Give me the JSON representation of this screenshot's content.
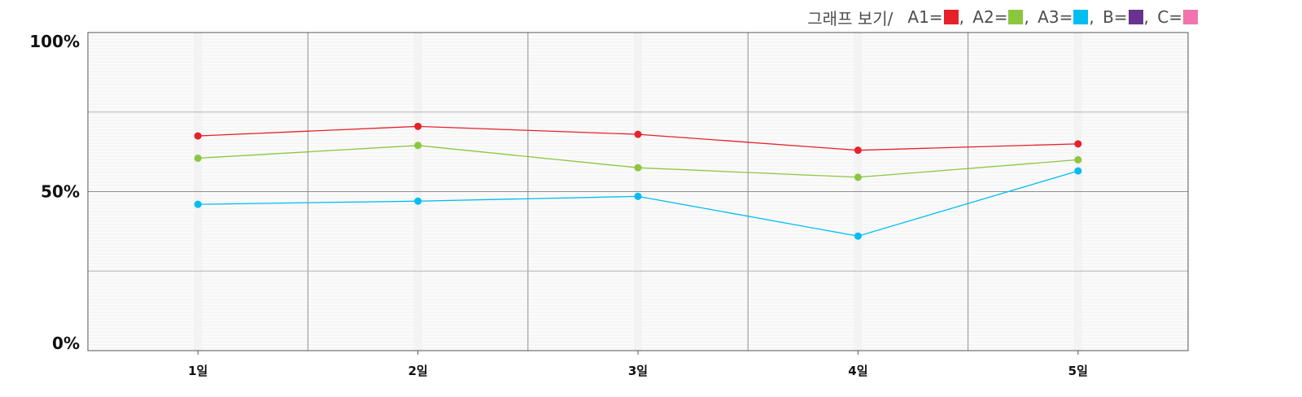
{
  "legend": {
    "title": "그래프 보기/",
    "items": [
      {
        "label": "A1=",
        "color": "#e5212a"
      },
      {
        "label": "A2=",
        "color": "#8cc63f"
      },
      {
        "label": "A3=",
        "color": "#00bdf2"
      },
      {
        "label": "B=",
        "color": "#68328f"
      },
      {
        "label": "C=",
        "color": "#f174ac"
      }
    ],
    "separator": ","
  },
  "chart_data": {
    "type": "line",
    "categories": [
      "1일",
      "2일",
      "3일",
      "4일",
      "5일"
    ],
    "yticks": [
      "100%",
      "50%",
      "0%"
    ],
    "ylim": [
      0,
      100
    ],
    "grid": true,
    "legend_position": "top-right",
    "series": [
      {
        "name": "A1",
        "color": "#e5212a",
        "values": [
          67.5,
          70.5,
          68,
          63,
          65
        ]
      },
      {
        "name": "A2",
        "color": "#8cc63f",
        "values": [
          60.5,
          64.5,
          57.5,
          54.5,
          60
        ]
      },
      {
        "name": "A3",
        "color": "#00bdf2",
        "values": [
          46,
          47,
          48.5,
          36,
          56.5
        ]
      }
    ]
  }
}
